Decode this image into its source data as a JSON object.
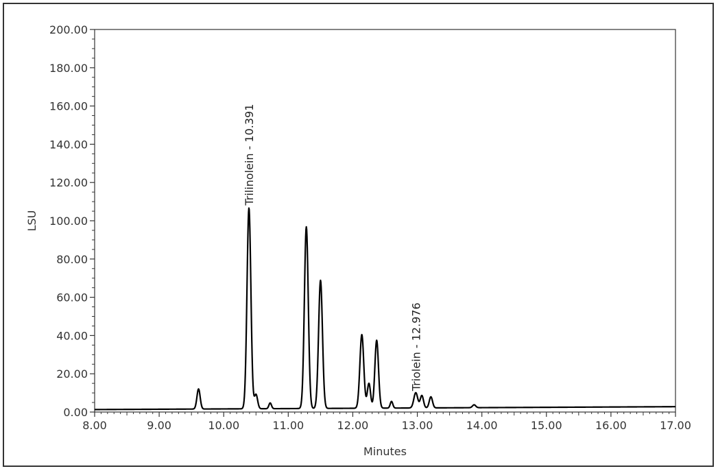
{
  "chart_data": {
    "type": "line",
    "title": "",
    "xlabel": "Minutes",
    "ylabel": "LSU",
    "xlim": [
      8.0,
      17.0
    ],
    "ylim": [
      0.0,
      200.0
    ],
    "x_ticks": [
      "8.00",
      "9.00",
      "10.00",
      "11.00",
      "12.00",
      "13.00",
      "14.00",
      "15.00",
      "16.00",
      "17.00"
    ],
    "y_ticks": [
      "0.00",
      "20.00",
      "40.00",
      "60.00",
      "80.00",
      "100.00",
      "120.00",
      "140.00",
      "160.00",
      "180.00",
      "200.00"
    ],
    "grid": false,
    "line_color": "#000000",
    "baseline": {
      "start": 1.3,
      "end": 2.8
    },
    "peaks": [
      {
        "x": 9.61,
        "height": 10.5,
        "width": 0.025
      },
      {
        "x": 10.391,
        "height": 105.0,
        "width": 0.03
      },
      {
        "x": 10.5,
        "height": 7.5,
        "width": 0.025
      },
      {
        "x": 10.72,
        "height": 3.0,
        "width": 0.02
      },
      {
        "x": 11.28,
        "height": 95.0,
        "width": 0.03
      },
      {
        "x": 11.5,
        "height": 67.0,
        "width": 0.03
      },
      {
        "x": 12.14,
        "height": 38.5,
        "width": 0.03
      },
      {
        "x": 12.25,
        "height": 13.0,
        "width": 0.025
      },
      {
        "x": 12.37,
        "height": 35.5,
        "width": 0.028
      },
      {
        "x": 12.6,
        "height": 3.5,
        "width": 0.02
      },
      {
        "x": 12.976,
        "height": 8.0,
        "width": 0.03
      },
      {
        "x": 13.07,
        "height": 6.5,
        "width": 0.025
      },
      {
        "x": 13.21,
        "height": 5.8,
        "width": 0.025
      },
      {
        "x": 13.88,
        "height": 1.5,
        "width": 0.025
      }
    ],
    "annotations": [
      {
        "text": "Trilinolein - 10.391",
        "x": 10.391,
        "y": 108.0
      },
      {
        "text": "Triolein - 12.976",
        "x": 12.976,
        "y": 11.0
      }
    ]
  }
}
